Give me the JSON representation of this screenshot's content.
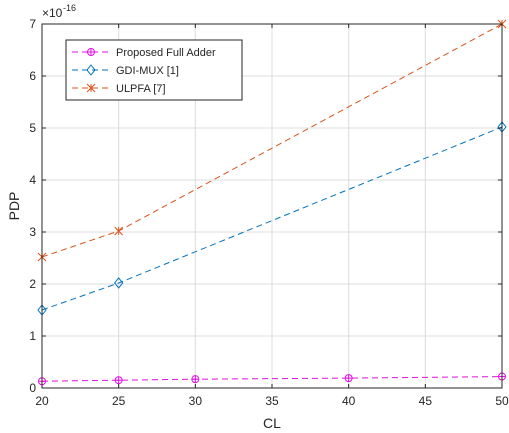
{
  "chart_data": {
    "type": "line",
    "xlabel": "CL",
    "ylabel": "PDP",
    "exponent_label": "×10",
    "exponent_power": "-16",
    "xlim": [
      20,
      50
    ],
    "ylim": [
      0,
      7
    ],
    "x_ticks": [
      "20",
      "25",
      "30",
      "35",
      "40",
      "45",
      "50"
    ],
    "y_ticks": [
      "0",
      "1",
      "2",
      "3",
      "4",
      "5",
      "6",
      "7"
    ],
    "grid": true,
    "legend_position": "top-left",
    "series": [
      {
        "name": "Proposed Full Adder",
        "color": "#e00ee0",
        "marker": "circle-plus",
        "points": [
          [
            20,
            0.13
          ],
          [
            25,
            0.15
          ],
          [
            30,
            0.17
          ],
          [
            40,
            0.19
          ],
          [
            50,
            0.22
          ]
        ]
      },
      {
        "name": "GDI-MUX [1]",
        "color": "#0072bd",
        "marker": "diamond",
        "points": [
          [
            20,
            1.5
          ],
          [
            25,
            2.02
          ],
          [
            50,
            5.02
          ]
        ]
      },
      {
        "name": "ULPFA [7]",
        "color": "#d95319",
        "marker": "asterisk",
        "points": [
          [
            20,
            2.52
          ],
          [
            25,
            3.02
          ],
          [
            50,
            7.0
          ]
        ]
      }
    ]
  }
}
